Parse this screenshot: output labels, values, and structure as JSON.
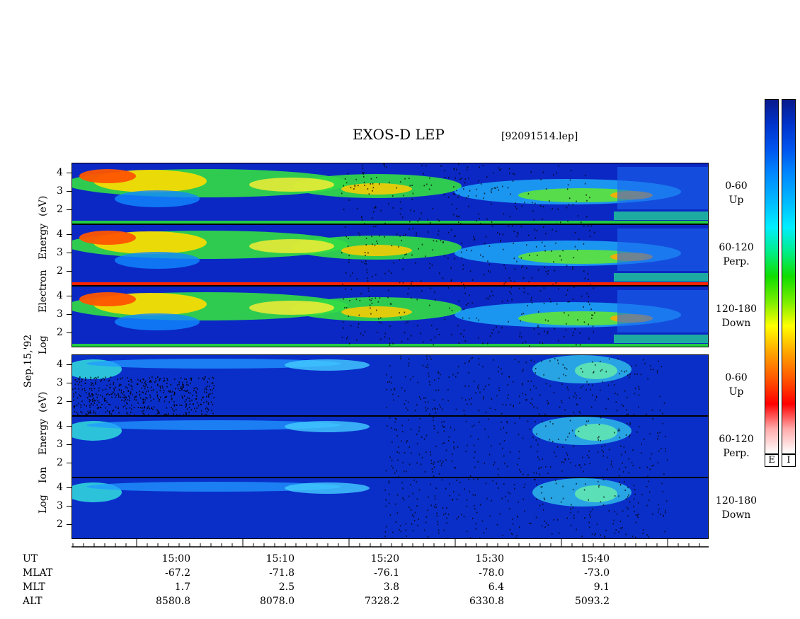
{
  "header": {
    "title": "EXOS-D LEP",
    "file": "[92091514.lep]"
  },
  "date_label": "Sep.15,'92",
  "electron_axis_label": {
    "scale": "Log",
    "species": "Electron",
    "quantity": "Energy",
    "unit": "(eV)"
  },
  "ion_axis_label": {
    "scale": "Log",
    "species": "Ion",
    "quantity": "Energy",
    "unit": "(eV)"
  },
  "colorbar": {
    "e_label": "E",
    "i_label": "I",
    "colors": [
      "#0a1a8c",
      "#0033cc",
      "#0055ee",
      "#0088ff",
      "#00bbff",
      "#00eeff",
      "#00ee88",
      "#11dd00",
      "#77ee00",
      "#ffff00",
      "#ffaa00",
      "#ff5500",
      "#ff0000",
      "#ffaaaa",
      "#ffffff"
    ]
  },
  "chart_data": [
    {
      "type": "heatmap",
      "species": "Electron",
      "pitch_angle": "0-60",
      "direction": "Up",
      "y_ticks": [
        "4",
        "3",
        "2"
      ],
      "colors": {
        "background": "#0a2dc8",
        "band": "#22ee66",
        "hot": "#ff3300",
        "speckle": "#000000"
      }
    },
    {
      "type": "heatmap",
      "species": "Electron",
      "pitch_angle": "60-120",
      "direction": "Perp.",
      "y_ticks": [
        "4",
        "3",
        "2"
      ]
    },
    {
      "type": "heatmap",
      "species": "Electron",
      "pitch_angle": "120-180",
      "direction": "Down",
      "y_ticks": [
        "4",
        "3",
        "2"
      ]
    },
    {
      "type": "heatmap",
      "species": "Ion",
      "pitch_angle": "0-60",
      "direction": "Up",
      "y_ticks": [
        "4",
        "3",
        "2"
      ]
    },
    {
      "type": "heatmap",
      "species": "Ion",
      "pitch_angle": "60-120",
      "direction": "Perp.",
      "y_ticks": [
        "4",
        "3",
        "2"
      ]
    },
    {
      "type": "heatmap",
      "species": "Ion",
      "pitch_angle": "120-180",
      "direction": "Down",
      "y_ticks": [
        "4",
        "3",
        "2"
      ]
    }
  ],
  "time_axis": {
    "row_labels": {
      "ut": "UT",
      "mlat": "MLAT",
      "mlt": "MLT",
      "alt": "ALT"
    },
    "ticks": [
      {
        "ut": "15:00",
        "mlat": "-67.2",
        "mlt": "1.7",
        "alt": "8580.8"
      },
      {
        "ut": "15:10",
        "mlat": "-71.8",
        "mlt": "2.5",
        "alt": "8078.0"
      },
      {
        "ut": "15:20",
        "mlat": "-76.1",
        "mlt": "3.8",
        "alt": "7328.2"
      },
      {
        "ut": "15:30",
        "mlat": "-78.0",
        "mlt": "6.4",
        "alt": "6330.8"
      },
      {
        "ut": "15:40",
        "mlat": "-73.0",
        "mlt": "9.1",
        "alt": "5093.2"
      }
    ]
  }
}
